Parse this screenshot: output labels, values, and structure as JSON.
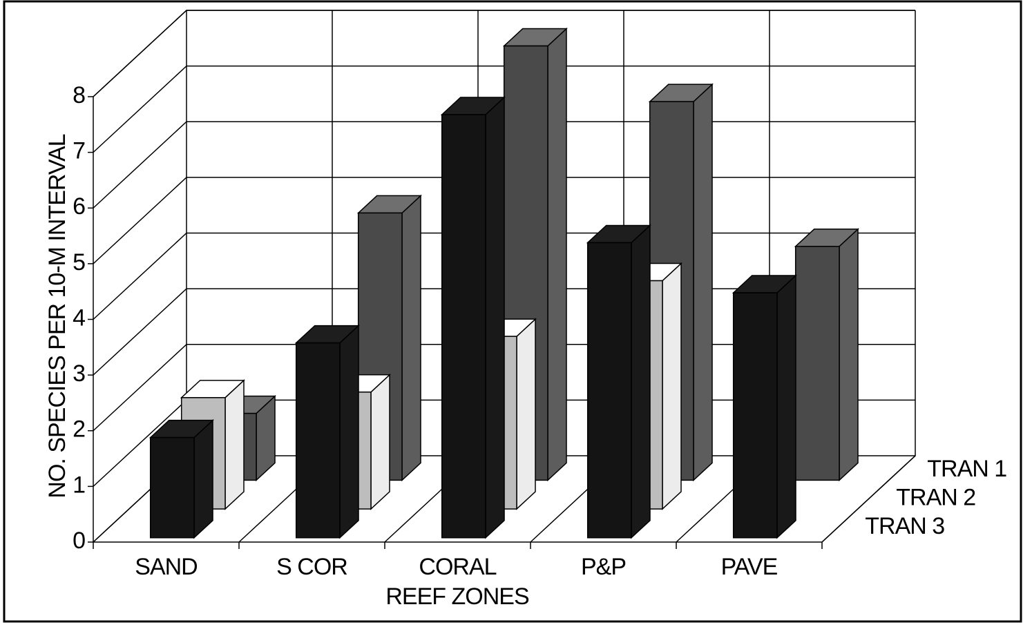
{
  "chart_data": {
    "type": "bar3d",
    "y_label": "NO. SPECIES PER 10-M INTERVAL",
    "x_label": "REEF ZONES",
    "categories": [
      "SAND",
      "S COR",
      "CORAL",
      "P&P",
      "PAVE"
    ],
    "series": [
      {
        "name": "TRAN 1",
        "color": "#4a4a4a",
        "values": [
          1.2,
          4.8,
          7.8,
          6.8,
          4.2
        ]
      },
      {
        "name": "TRAN 2",
        "color": "#bdbdbd",
        "values": [
          2.0,
          2.1,
          3.1,
          4.1,
          null
        ]
      },
      {
        "name": "TRAN 3",
        "color": "#141414",
        "values": [
          1.8,
          3.5,
          7.6,
          5.3,
          4.4
        ]
      }
    ],
    "ylim": [
      0,
      8
    ],
    "yticks": [
      0,
      1,
      2,
      3,
      4,
      5,
      6,
      7,
      8
    ],
    "grid": true
  }
}
